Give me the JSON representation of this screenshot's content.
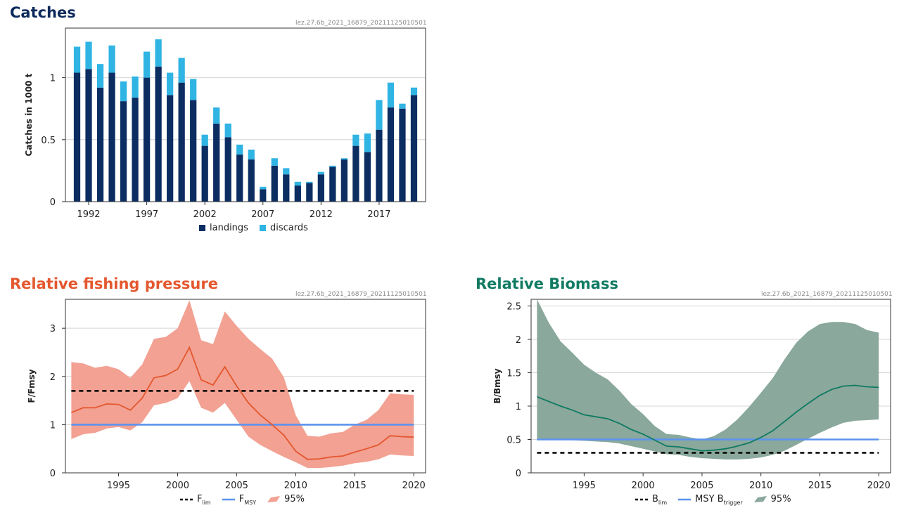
{
  "charts": {
    "catches": {
      "title": "Catches",
      "title_color": "#0d2a5c",
      "code": "lez.27.6b_2021_16879_20211125010501",
      "ylabel": "Catches in 1000 t",
      "legend": {
        "landings": "landings",
        "discards": "discards"
      }
    },
    "fishing": {
      "title": "Relative fishing pressure",
      "title_color": "#e4572e",
      "code": "lez.27.6b_2021_16879_20211125010501",
      "ylabel": "F/Fmsy",
      "legend": {
        "flim_main": "F",
        "flim_sub": "lim",
        "fmsy_main": "F",
        "fmsy_sub": "MSY",
        "ci": "95%"
      }
    },
    "biomass": {
      "title": "Relative Biomass",
      "title_color": "#0f7a62",
      "code": "lez.27.6b_2021_16879_20211125010501",
      "ylabel": "B/Bmsy",
      "legend": {
        "blim_main": "B",
        "blim_sub": "lim",
        "btrig_main": "MSY B",
        "btrig_sub": "trigger",
        "ci": "95%"
      }
    }
  },
  "chart_data": [
    {
      "type": "bar",
      "stacked": true,
      "title": "Catches",
      "ylabel": "Catches in 1000 t",
      "ylim": [
        0,
        1.4
      ],
      "yticks": [
        0,
        0.5,
        1
      ],
      "xticks": [
        1992,
        1997,
        2002,
        2007,
        2012,
        2017
      ],
      "grid": true,
      "legend_position": "bottom",
      "categories": [
        1991,
        1992,
        1993,
        1994,
        1995,
        1996,
        1997,
        1998,
        1999,
        2000,
        2001,
        2002,
        2003,
        2004,
        2005,
        2006,
        2007,
        2008,
        2009,
        2010,
        2011,
        2012,
        2013,
        2014,
        2015,
        2016,
        2017,
        2018,
        2019,
        2020
      ],
      "colors": {
        "landings": "#0b2d62",
        "discards": "#2fb4e3"
      },
      "series": [
        {
          "name": "landings",
          "values": [
            1.04,
            1.07,
            0.92,
            1.04,
            0.81,
            0.84,
            1.0,
            1.09,
            0.86,
            0.96,
            0.82,
            0.45,
            0.63,
            0.52,
            0.38,
            0.34,
            0.1,
            0.29,
            0.22,
            0.13,
            0.15,
            0.22,
            0.28,
            0.34,
            0.45,
            0.4,
            0.58,
            0.76,
            0.75,
            0.86
          ]
        },
        {
          "name": "discards",
          "values": [
            0.21,
            0.22,
            0.19,
            0.22,
            0.16,
            0.17,
            0.21,
            0.22,
            0.18,
            0.2,
            0.17,
            0.09,
            0.13,
            0.11,
            0.08,
            0.08,
            0.02,
            0.06,
            0.05,
            0.03,
            0.01,
            0.02,
            0.01,
            0.01,
            0.09,
            0.15,
            0.24,
            0.2,
            0.04,
            0.06
          ]
        }
      ]
    },
    {
      "type": "line",
      "title": "Relative fishing pressure",
      "ylabel": "F/Fmsy",
      "xlim": [
        1990.5,
        2021
      ],
      "ylim": [
        0,
        3.6
      ],
      "yticks": [
        0,
        1,
        2,
        3
      ],
      "xticks": [
        1995,
        2000,
        2005,
        2010,
        2015,
        2020
      ],
      "grid": true,
      "legend_position": "bottom",
      "colors": {
        "line": "#e4572e",
        "band": "#f2a193",
        "fmsy": "#5b93ee",
        "flim": "#000000"
      },
      "x": [
        1991,
        1992,
        1993,
        1994,
        1995,
        1996,
        1997,
        1998,
        1999,
        2000,
        2001,
        2002,
        2003,
        2004,
        2005,
        2006,
        2007,
        2008,
        2009,
        2010,
        2011,
        2012,
        2013,
        2014,
        2015,
        2016,
        2017,
        2018,
        2019,
        2020
      ],
      "series": [
        {
          "name": "F/Fmsy",
          "values": [
            1.25,
            1.35,
            1.35,
            1.43,
            1.42,
            1.3,
            1.55,
            1.97,
            2.02,
            2.15,
            2.6,
            1.93,
            1.82,
            2.2,
            1.8,
            1.45,
            1.2,
            1.0,
            0.78,
            0.45,
            0.28,
            0.29,
            0.33,
            0.35,
            0.43,
            0.5,
            0.58,
            0.77,
            0.75,
            0.74
          ]
        },
        {
          "name": "95% lower",
          "values": [
            0.7,
            0.8,
            0.83,
            0.92,
            0.95,
            0.88,
            1.05,
            1.4,
            1.45,
            1.55,
            1.9,
            1.35,
            1.25,
            1.45,
            1.1,
            0.75,
            0.58,
            0.45,
            0.33,
            0.22,
            0.1,
            0.1,
            0.12,
            0.15,
            0.2,
            0.23,
            0.28,
            0.38,
            0.36,
            0.35
          ]
        },
        {
          "name": "95% upper",
          "values": [
            2.3,
            2.27,
            2.18,
            2.22,
            2.15,
            1.97,
            2.25,
            2.78,
            2.82,
            3.0,
            3.58,
            2.75,
            2.67,
            3.35,
            3.05,
            2.78,
            2.57,
            2.37,
            1.98,
            1.2,
            0.77,
            0.75,
            0.82,
            0.85,
            1.0,
            1.1,
            1.3,
            1.65,
            1.63,
            1.62
          ]
        },
        {
          "name": "Flim",
          "constant": 1.7
        },
        {
          "name": "FMSY",
          "constant": 1.0
        }
      ]
    },
    {
      "type": "line",
      "title": "Relative Biomass",
      "ylabel": "B/Bmsy",
      "xlim": [
        1990.5,
        2021
      ],
      "ylim": [
        0,
        2.6
      ],
      "yticks": [
        0,
        0.5,
        1,
        1.5,
        2,
        2.5
      ],
      "xticks": [
        1995,
        2000,
        2005,
        2010,
        2015,
        2020
      ],
      "grid": true,
      "legend_position": "bottom",
      "colors": {
        "line": "#0f7a62",
        "band": "#8aa89c",
        "btrigger": "#5b93ee",
        "blim": "#000000"
      },
      "x": [
        1991,
        1992,
        1993,
        1994,
        1995,
        1996,
        1997,
        1998,
        1999,
        2000,
        2001,
        2002,
        2003,
        2004,
        2005,
        2006,
        2007,
        2008,
        2009,
        2010,
        2011,
        2012,
        2013,
        2014,
        2015,
        2016,
        2017,
        2018,
        2019,
        2020
      ],
      "series": [
        {
          "name": "B/Bmsy",
          "values": [
            1.14,
            1.07,
            1.0,
            0.94,
            0.87,
            0.84,
            0.81,
            0.74,
            0.65,
            0.58,
            0.49,
            0.4,
            0.39,
            0.36,
            0.33,
            0.34,
            0.36,
            0.4,
            0.45,
            0.53,
            0.63,
            0.77,
            0.91,
            1.04,
            1.16,
            1.25,
            1.3,
            1.31,
            1.29,
            1.28
          ]
        },
        {
          "name": "95% lower",
          "values": [
            0.5,
            0.5,
            0.5,
            0.49,
            0.48,
            0.47,
            0.46,
            0.44,
            0.4,
            0.36,
            0.32,
            0.28,
            0.27,
            0.24,
            0.22,
            0.21,
            0.2,
            0.2,
            0.21,
            0.23,
            0.27,
            0.33,
            0.42,
            0.51,
            0.6,
            0.68,
            0.75,
            0.78,
            0.79,
            0.8
          ]
        },
        {
          "name": "95% upper",
          "values": [
            2.6,
            2.25,
            1.97,
            1.8,
            1.62,
            1.5,
            1.4,
            1.23,
            1.03,
            0.88,
            0.7,
            0.58,
            0.57,
            0.53,
            0.5,
            0.55,
            0.65,
            0.8,
            0.99,
            1.2,
            1.42,
            1.7,
            1.95,
            2.12,
            2.23,
            2.26,
            2.26,
            2.23,
            2.14,
            2.1
          ]
        },
        {
          "name": "Blim",
          "constant": 0.3
        },
        {
          "name": "MSY Btrigger",
          "constant": 0.5
        }
      ]
    }
  ]
}
